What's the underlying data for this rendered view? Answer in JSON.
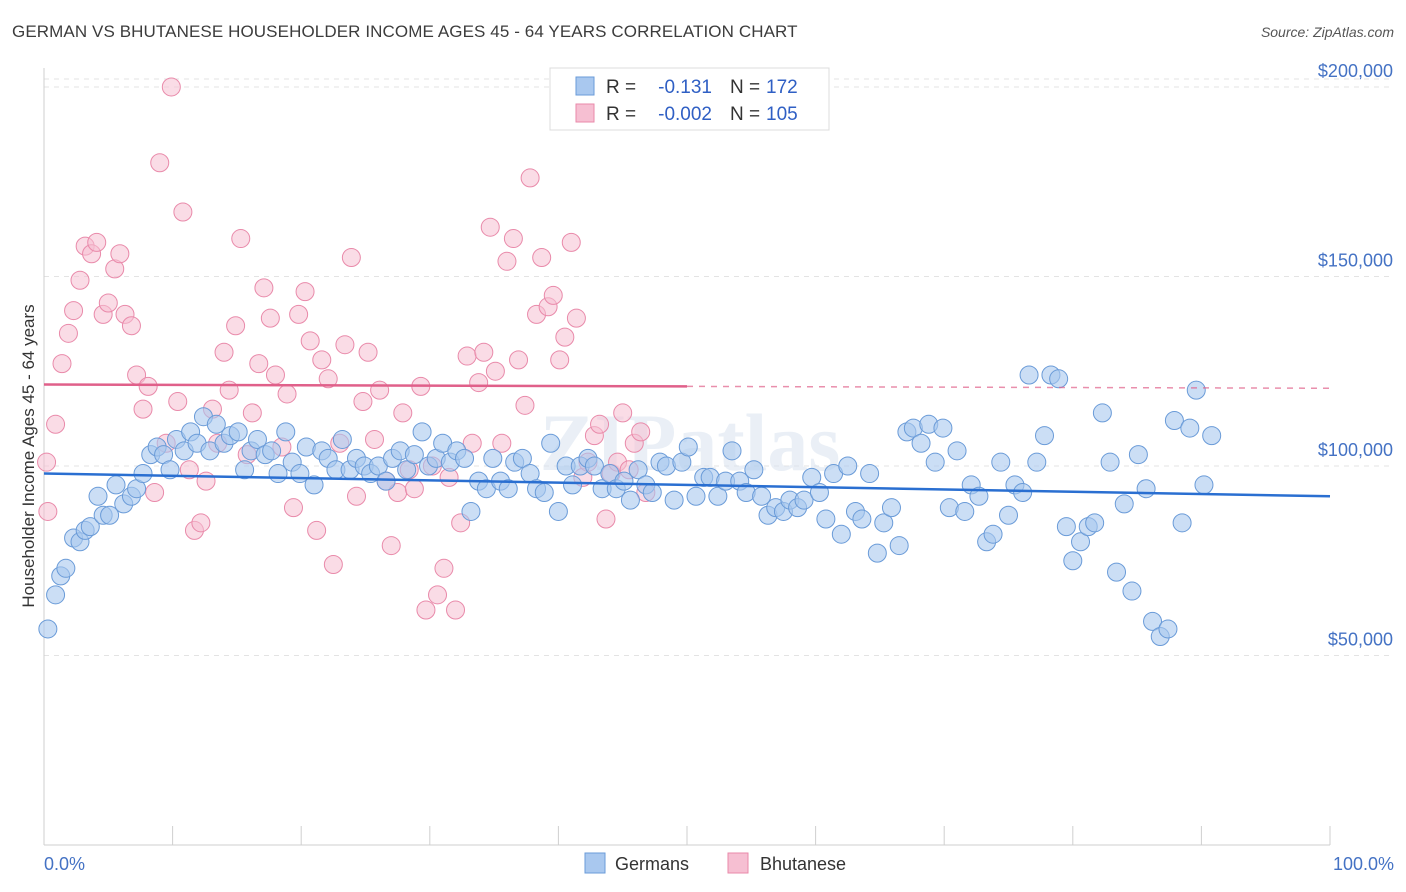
{
  "title": "GERMAN VS BHUTANESE HOUSEHOLDER INCOME AGES 45 - 64 YEARS CORRELATION CHART",
  "source": "Source: ZipAtlas.com",
  "watermark": "ZIPatlas",
  "colors": {
    "germans_fill": "#a9c8ef",
    "germans_stroke": "#6a9bd8",
    "germans_line": "#2a6fd1",
    "bhutanese_fill": "#f6bfd2",
    "bhutanese_stroke": "#e98aaa",
    "bhutanese_line": "#e0608a",
    "tick_text": "#4472c4"
  },
  "legend": {
    "rows": [
      {
        "r_label": "R =",
        "r_value": "-0.131",
        "n_label": "N =",
        "n_value": "172"
      },
      {
        "r_label": "R =",
        "r_value": "-0.002",
        "n_label": "N =",
        "n_value": "105"
      }
    ]
  },
  "bottom_legend": [
    "Germans",
    "Bhutanese"
  ],
  "chart_data": {
    "type": "scatter",
    "title": "GERMAN VS BHUTANESE HOUSEHOLDER INCOME AGES 45 - 64 YEARS CORRELATION CHART",
    "xlabel": "",
    "ylabel": "Householder Income Ages 45 - 64 years",
    "xlim": [
      0,
      100
    ],
    "ylim": [
      0,
      205000
    ],
    "x_tick_labels": [
      "0.0%",
      "100.0%"
    ],
    "y_ticks": [
      50000,
      100000,
      150000,
      200000
    ],
    "y_tick_labels": [
      "$50,000",
      "$100,000",
      "$150,000",
      "$200,000"
    ],
    "grid": true,
    "legend_position": "top-center",
    "series": [
      {
        "name": "Germans",
        "R": -0.131,
        "N": 172,
        "trend": {
          "x": [
            0,
            100
          ],
          "y": [
            98000,
            92000
          ]
        },
        "points": [
          [
            0.3,
            57000
          ],
          [
            0.9,
            66000
          ],
          [
            1.3,
            71000
          ],
          [
            1.7,
            73000
          ],
          [
            2.3,
            81000
          ],
          [
            2.8,
            80000
          ],
          [
            3.2,
            83000
          ],
          [
            3.6,
            84000
          ],
          [
            4.2,
            92000
          ],
          [
            4.6,
            87000
          ],
          [
            5.1,
            87000
          ],
          [
            5.6,
            95000
          ],
          [
            6.2,
            90000
          ],
          [
            6.8,
            92000
          ],
          [
            7.2,
            94000
          ],
          [
            7.7,
            98000
          ],
          [
            8.3,
            103000
          ],
          [
            8.8,
            105000
          ],
          [
            9.3,
            103000
          ],
          [
            9.8,
            99000
          ],
          [
            10.3,
            107000
          ],
          [
            10.9,
            104000
          ],
          [
            11.4,
            109000
          ],
          [
            11.9,
            106000
          ],
          [
            12.4,
            113000
          ],
          [
            12.9,
            104000
          ],
          [
            13.4,
            111000
          ],
          [
            14.0,
            106000
          ],
          [
            14.5,
            108000
          ],
          [
            15.1,
            109000
          ],
          [
            15.6,
            99000
          ],
          [
            16.1,
            104000
          ],
          [
            16.6,
            107000
          ],
          [
            17.2,
            103000
          ],
          [
            17.7,
            104000
          ],
          [
            18.2,
            98000
          ],
          [
            18.8,
            109000
          ],
          [
            19.3,
            101000
          ],
          [
            19.9,
            98000
          ],
          [
            20.4,
            105000
          ],
          [
            21.0,
            95000
          ],
          [
            21.6,
            104000
          ],
          [
            22.1,
            102000
          ],
          [
            22.7,
            99000
          ],
          [
            23.2,
            107000
          ],
          [
            23.8,
            99000
          ],
          [
            24.3,
            102000
          ],
          [
            24.9,
            100000
          ],
          [
            25.4,
            98000
          ],
          [
            26.0,
            100000
          ],
          [
            26.6,
            96000
          ],
          [
            27.1,
            102000
          ],
          [
            27.7,
            104000
          ],
          [
            28.2,
            99000
          ],
          [
            28.8,
            103000
          ],
          [
            29.4,
            109000
          ],
          [
            29.9,
            100000
          ],
          [
            30.5,
            102000
          ],
          [
            31.0,
            106000
          ],
          [
            31.6,
            101000
          ],
          [
            32.1,
            104000
          ],
          [
            32.7,
            102000
          ],
          [
            33.2,
            88000
          ],
          [
            33.8,
            96000
          ],
          [
            34.4,
            94000
          ],
          [
            34.9,
            102000
          ],
          [
            35.5,
            96000
          ],
          [
            36.1,
            94000
          ],
          [
            36.6,
            101000
          ],
          [
            37.2,
            102000
          ],
          [
            37.8,
            98000
          ],
          [
            38.3,
            94000
          ],
          [
            38.9,
            93000
          ],
          [
            39.4,
            106000
          ],
          [
            40.0,
            88000
          ],
          [
            40.6,
            100000
          ],
          [
            41.1,
            95000
          ],
          [
            41.7,
            100000
          ],
          [
            42.3,
            102000
          ],
          [
            42.8,
            100000
          ],
          [
            43.4,
            94000
          ],
          [
            44.0,
            98000
          ],
          [
            44.5,
            94000
          ],
          [
            45.1,
            96000
          ],
          [
            45.6,
            91000
          ],
          [
            46.2,
            99000
          ],
          [
            46.8,
            95000
          ],
          [
            47.3,
            93000
          ],
          [
            47.9,
            101000
          ],
          [
            48.4,
            100000
          ],
          [
            49.0,
            91000
          ],
          [
            49.6,
            101000
          ],
          [
            50.1,
            105000
          ],
          [
            50.7,
            92000
          ],
          [
            51.3,
            97000
          ],
          [
            51.8,
            97000
          ],
          [
            52.4,
            92000
          ],
          [
            53.0,
            96000
          ],
          [
            53.5,
            104000
          ],
          [
            54.1,
            96000
          ],
          [
            54.6,
            93000
          ],
          [
            55.2,
            99000
          ],
          [
            55.8,
            92000
          ],
          [
            56.3,
            87000
          ],
          [
            56.9,
            89000
          ],
          [
            57.5,
            88000
          ],
          [
            58.0,
            91000
          ],
          [
            58.6,
            89000
          ],
          [
            59.1,
            91000
          ],
          [
            59.7,
            97000
          ],
          [
            60.3,
            93000
          ],
          [
            60.8,
            86000
          ],
          [
            61.4,
            98000
          ],
          [
            62.0,
            82000
          ],
          [
            62.5,
            100000
          ],
          [
            63.1,
            88000
          ],
          [
            63.6,
            86000
          ],
          [
            64.2,
            98000
          ],
          [
            64.8,
            77000
          ],
          [
            65.3,
            85000
          ],
          [
            65.9,
            89000
          ],
          [
            66.5,
            79000
          ],
          [
            67.1,
            109000
          ],
          [
            67.6,
            110000
          ],
          [
            68.2,
            106000
          ],
          [
            68.8,
            111000
          ],
          [
            69.3,
            101000
          ],
          [
            69.9,
            110000
          ],
          [
            70.4,
            89000
          ],
          [
            71.0,
            104000
          ],
          [
            71.6,
            88000
          ],
          [
            72.1,
            95000
          ],
          [
            72.7,
            92000
          ],
          [
            73.3,
            80000
          ],
          [
            73.8,
            82000
          ],
          [
            74.4,
            101000
          ],
          [
            75.0,
            87000
          ],
          [
            75.5,
            95000
          ],
          [
            76.1,
            93000
          ],
          [
            76.6,
            124000
          ],
          [
            77.2,
            101000
          ],
          [
            77.8,
            108000
          ],
          [
            78.3,
            124000
          ],
          [
            78.9,
            123000
          ],
          [
            79.5,
            84000
          ],
          [
            80.0,
            75000
          ],
          [
            80.6,
            80000
          ],
          [
            81.2,
            84000
          ],
          [
            81.7,
            85000
          ],
          [
            82.3,
            114000
          ],
          [
            82.9,
            101000
          ],
          [
            83.4,
            72000
          ],
          [
            84.0,
            90000
          ],
          [
            84.6,
            67000
          ],
          [
            85.1,
            103000
          ],
          [
            85.7,
            94000
          ],
          [
            86.2,
            59000
          ],
          [
            86.8,
            55000
          ],
          [
            87.4,
            57000
          ],
          [
            87.9,
            112000
          ],
          [
            88.5,
            85000
          ],
          [
            89.1,
            110000
          ],
          [
            89.6,
            120000
          ],
          [
            90.2,
            95000
          ],
          [
            90.8,
            108000
          ]
        ]
      },
      {
        "name": "Bhutanese",
        "R": -0.002,
        "N": 105,
        "trend": {
          "x": [
            0,
            50
          ],
          "y": [
            121500,
            121000
          ]
        },
        "trend_dashed": {
          "x": [
            50,
            100
          ],
          "y": [
            121000,
            120500
          ]
        },
        "points": [
          [
            0.2,
            101000
          ],
          [
            0.3,
            88000
          ],
          [
            0.9,
            111000
          ],
          [
            1.4,
            127000
          ],
          [
            1.9,
            135000
          ],
          [
            2.3,
            141000
          ],
          [
            2.8,
            149000
          ],
          [
            3.2,
            158000
          ],
          [
            3.7,
            156000
          ],
          [
            4.1,
            159000
          ],
          [
            4.6,
            140000
          ],
          [
            5.0,
            143000
          ],
          [
            5.5,
            152000
          ],
          [
            5.9,
            156000
          ],
          [
            6.3,
            140000
          ],
          [
            6.8,
            137000
          ],
          [
            7.2,
            124000
          ],
          [
            7.7,
            115000
          ],
          [
            8.1,
            121000
          ],
          [
            8.6,
            93000
          ],
          [
            9.0,
            180000
          ],
          [
            9.5,
            106000
          ],
          [
            9.9,
            200000
          ],
          [
            10.4,
            117000
          ],
          [
            10.8,
            167000
          ],
          [
            11.3,
            99000
          ],
          [
            11.7,
            83000
          ],
          [
            12.2,
            85000
          ],
          [
            12.6,
            96000
          ],
          [
            13.1,
            115000
          ],
          [
            13.5,
            106000
          ],
          [
            14.0,
            130000
          ],
          [
            14.4,
            120000
          ],
          [
            14.9,
            137000
          ],
          [
            15.3,
            160000
          ],
          [
            15.8,
            103000
          ],
          [
            16.2,
            114000
          ],
          [
            16.7,
            127000
          ],
          [
            17.1,
            147000
          ],
          [
            17.6,
            139000
          ],
          [
            18.0,
            124000
          ],
          [
            18.5,
            105000
          ],
          [
            18.9,
            119000
          ],
          [
            19.4,
            89000
          ],
          [
            19.8,
            140000
          ],
          [
            20.3,
            146000
          ],
          [
            20.7,
            133000
          ],
          [
            21.2,
            83000
          ],
          [
            21.6,
            128000
          ],
          [
            22.1,
            123000
          ],
          [
            22.5,
            74000
          ],
          [
            23.0,
            106000
          ],
          [
            23.4,
            132000
          ],
          [
            23.9,
            155000
          ],
          [
            24.3,
            92000
          ],
          [
            24.8,
            117000
          ],
          [
            25.2,
            130000
          ],
          [
            25.7,
            107000
          ],
          [
            26.1,
            120000
          ],
          [
            26.6,
            96000
          ],
          [
            27.0,
            79000
          ],
          [
            27.5,
            93000
          ],
          [
            27.9,
            114000
          ],
          [
            28.4,
            99000
          ],
          [
            28.8,
            94000
          ],
          [
            29.3,
            121000
          ],
          [
            29.7,
            62000
          ],
          [
            30.2,
            100000
          ],
          [
            30.6,
            66000
          ],
          [
            31.1,
            73000
          ],
          [
            31.5,
            97000
          ],
          [
            32.0,
            62000
          ],
          [
            32.4,
            85000
          ],
          [
            32.9,
            129000
          ],
          [
            33.3,
            106000
          ],
          [
            33.8,
            122000
          ],
          [
            34.2,
            130000
          ],
          [
            34.7,
            163000
          ],
          [
            35.1,
            125000
          ],
          [
            35.6,
            106000
          ],
          [
            36.0,
            154000
          ],
          [
            36.5,
            160000
          ],
          [
            36.9,
            128000
          ],
          [
            37.4,
            116000
          ],
          [
            37.8,
            176000
          ],
          [
            38.3,
            140000
          ],
          [
            38.7,
            155000
          ],
          [
            39.2,
            142000
          ],
          [
            39.6,
            145000
          ],
          [
            40.1,
            128000
          ],
          [
            40.5,
            134000
          ],
          [
            41.0,
            159000
          ],
          [
            41.4,
            139000
          ],
          [
            41.9,
            97000
          ],
          [
            42.3,
            101000
          ],
          [
            42.8,
            108000
          ],
          [
            43.2,
            111000
          ],
          [
            43.7,
            86000
          ],
          [
            44.1,
            98000
          ],
          [
            44.6,
            101000
          ],
          [
            45.0,
            114000
          ],
          [
            45.5,
            99000
          ],
          [
            45.9,
            106000
          ],
          [
            46.4,
            109000
          ],
          [
            46.8,
            93000
          ]
        ]
      }
    ]
  }
}
